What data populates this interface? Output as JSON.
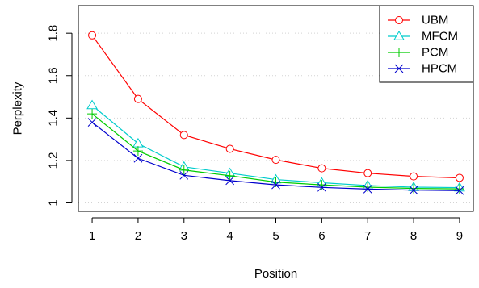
{
  "chart_data": {
    "type": "line",
    "title": "",
    "xlabel": "Position",
    "ylabel": "Perplexity",
    "x": [
      1,
      2,
      3,
      4,
      5,
      6,
      7,
      8,
      9
    ],
    "xlim": [
      0.7,
      9.3
    ],
    "ylim": [
      0.96,
      1.93
    ],
    "xticks": [
      1,
      2,
      3,
      4,
      5,
      6,
      7,
      8,
      9
    ],
    "xtick_labels": [
      "1",
      "2",
      "3",
      "4",
      "5",
      "6",
      "7",
      "8",
      "9"
    ],
    "yticks": [
      1.0,
      1.2,
      1.4,
      1.6,
      1.8
    ],
    "ytick_labels": [
      "1",
      "1.2",
      "1.4",
      "1.6",
      "1.8"
    ],
    "grid": "horizontal dotted",
    "legend_position": "top-right",
    "series": [
      {
        "name": "UBM",
        "color": "#ff0000",
        "marker": "circle",
        "values": [
          1.79,
          1.49,
          1.32,
          1.255,
          1.203,
          1.163,
          1.14,
          1.125,
          1.118
        ]
      },
      {
        "name": "MFCM",
        "color": "#00cccc",
        "marker": "triangle",
        "values": [
          1.46,
          1.28,
          1.17,
          1.14,
          1.11,
          1.095,
          1.082,
          1.074,
          1.072
        ]
      },
      {
        "name": "PCM",
        "color": "#00cc00",
        "marker": "plus",
        "values": [
          1.42,
          1.245,
          1.155,
          1.128,
          1.098,
          1.085,
          1.074,
          1.068,
          1.066
        ]
      },
      {
        "name": "HPCM",
        "color": "#0000cc",
        "marker": "cross",
        "values": [
          1.38,
          1.21,
          1.13,
          1.105,
          1.085,
          1.073,
          1.065,
          1.06,
          1.058
        ]
      }
    ]
  }
}
